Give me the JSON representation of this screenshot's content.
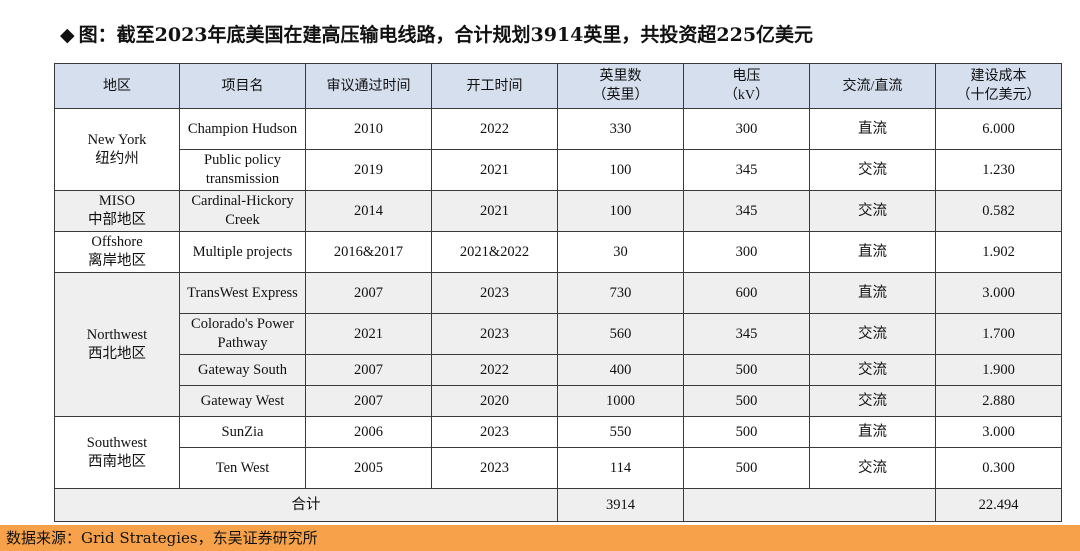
{
  "title": {
    "marker": "◆",
    "text": "图：截至2023年底美国在建高压输电线路，合计规划3914英里，共投资超225亿美元"
  },
  "table": {
    "headers": [
      {
        "line1": "地区",
        "line2": ""
      },
      {
        "line1": "项目名",
        "line2": ""
      },
      {
        "line1": "审议通过时间",
        "line2": ""
      },
      {
        "line1": "开工时间",
        "line2": ""
      },
      {
        "line1": "英里数",
        "line2": "（英里）"
      },
      {
        "line1": "电压",
        "line2": "（kV）"
      },
      {
        "line1": "交流/直流",
        "line2": ""
      },
      {
        "line1": "建设成本",
        "line2": "（十亿美元）"
      }
    ],
    "regions": [
      {
        "en": "New York",
        "zh": "纽约州"
      },
      {
        "en": "MISO",
        "zh": "中部地区"
      },
      {
        "en": "Offshore",
        "zh": "离岸地区"
      },
      {
        "en": "Northwest",
        "zh": "西北地区"
      },
      {
        "en": "Southwest",
        "zh": "西南地区"
      }
    ],
    "rows": [
      {
        "project": "Champion Hudson",
        "approved": "2010",
        "start": "2022",
        "miles": "330",
        "kv": "300",
        "type": "直流",
        "cost": "6.000"
      },
      {
        "project": "Public policy transmission",
        "approved": "2019",
        "start": "2021",
        "miles": "100",
        "kv": "345",
        "type": "交流",
        "cost": "1.230"
      },
      {
        "project": "Cardinal-Hickory Creek",
        "approved": "2014",
        "start": "2021",
        "miles": "100",
        "kv": "345",
        "type": "交流",
        "cost": "0.582"
      },
      {
        "project": "Multiple projects",
        "approved": "2016&2017",
        "start": "2021&2022",
        "miles": "30",
        "kv": "300",
        "type": "直流",
        "cost": "1.902"
      },
      {
        "project": "TransWest Express",
        "approved": "2007",
        "start": "2023",
        "miles": "730",
        "kv": "600",
        "type": "直流",
        "cost": "3.000"
      },
      {
        "project": "Colorado's Power Pathway",
        "approved": "2021",
        "start": "2023",
        "miles": "560",
        "kv": "345",
        "type": "交流",
        "cost": "1.700"
      },
      {
        "project": "Gateway South",
        "approved": "2007",
        "start": "2022",
        "miles": "400",
        "kv": "500",
        "type": "交流",
        "cost": "1.900"
      },
      {
        "project": "Gateway West",
        "approved": "2007",
        "start": "2020",
        "miles": "1000",
        "kv": "500",
        "type": "交流",
        "cost": "2.880"
      },
      {
        "project": "SunZia",
        "approved": "2006",
        "start": "2023",
        "miles": "550",
        "kv": "500",
        "type": "直流",
        "cost": "3.000"
      },
      {
        "project": "Ten West",
        "approved": "2005",
        "start": "2023",
        "miles": "114",
        "kv": "500",
        "type": "交流",
        "cost": "0.300"
      }
    ],
    "total": {
      "label": "合计",
      "miles": "3914",
      "cost": "22.494"
    }
  },
  "footer": {
    "source": "数据来源：Grid Strategies，东吴证券研究所"
  }
}
